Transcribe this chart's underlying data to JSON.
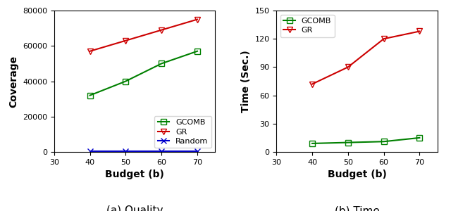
{
  "budget": [
    40,
    50,
    60,
    70
  ],
  "left": {
    "ylabel": "Coverage",
    "xlabel": "Budget (b)",
    "xlim": [
      30,
      75
    ],
    "ylim": [
      0,
      80000
    ],
    "yticks": [
      0,
      20000,
      40000,
      60000,
      80000
    ],
    "xticks": [
      30,
      40,
      50,
      60,
      70
    ],
    "legend_loc": "lower right",
    "series": [
      {
        "label": "GCOMB",
        "color": "#008000",
        "marker": "s",
        "values": [
          32000,
          40000,
          50000,
          57000
        ]
      },
      {
        "label": "GR",
        "color": "#cc0000",
        "marker": "v",
        "values": [
          57000,
          63000,
          69000,
          75000
        ]
      },
      {
        "label": "Random",
        "color": "#0000cc",
        "marker": "x",
        "values": [
          200,
          200,
          200,
          200
        ]
      }
    ]
  },
  "right": {
    "ylabel": "Time (Sec.)",
    "xlabel": "Budget (b)",
    "xlim": [
      30,
      75
    ],
    "ylim": [
      0,
      150
    ],
    "yticks": [
      0,
      30,
      60,
      90,
      120,
      150
    ],
    "xticks": [
      30,
      40,
      50,
      60,
      70
    ],
    "legend_loc": "upper left",
    "series": [
      {
        "label": "GCOMB",
        "color": "#008000",
        "marker": "s",
        "values": [
          9,
          10,
          11,
          15
        ]
      },
      {
        "label": "GR",
        "color": "#cc0000",
        "marker": "v",
        "values": [
          72,
          90,
          120,
          128
        ]
      }
    ]
  },
  "caption_left": "(a) Quality",
  "caption_right": "(b) Time",
  "caption_fontsize": 11
}
